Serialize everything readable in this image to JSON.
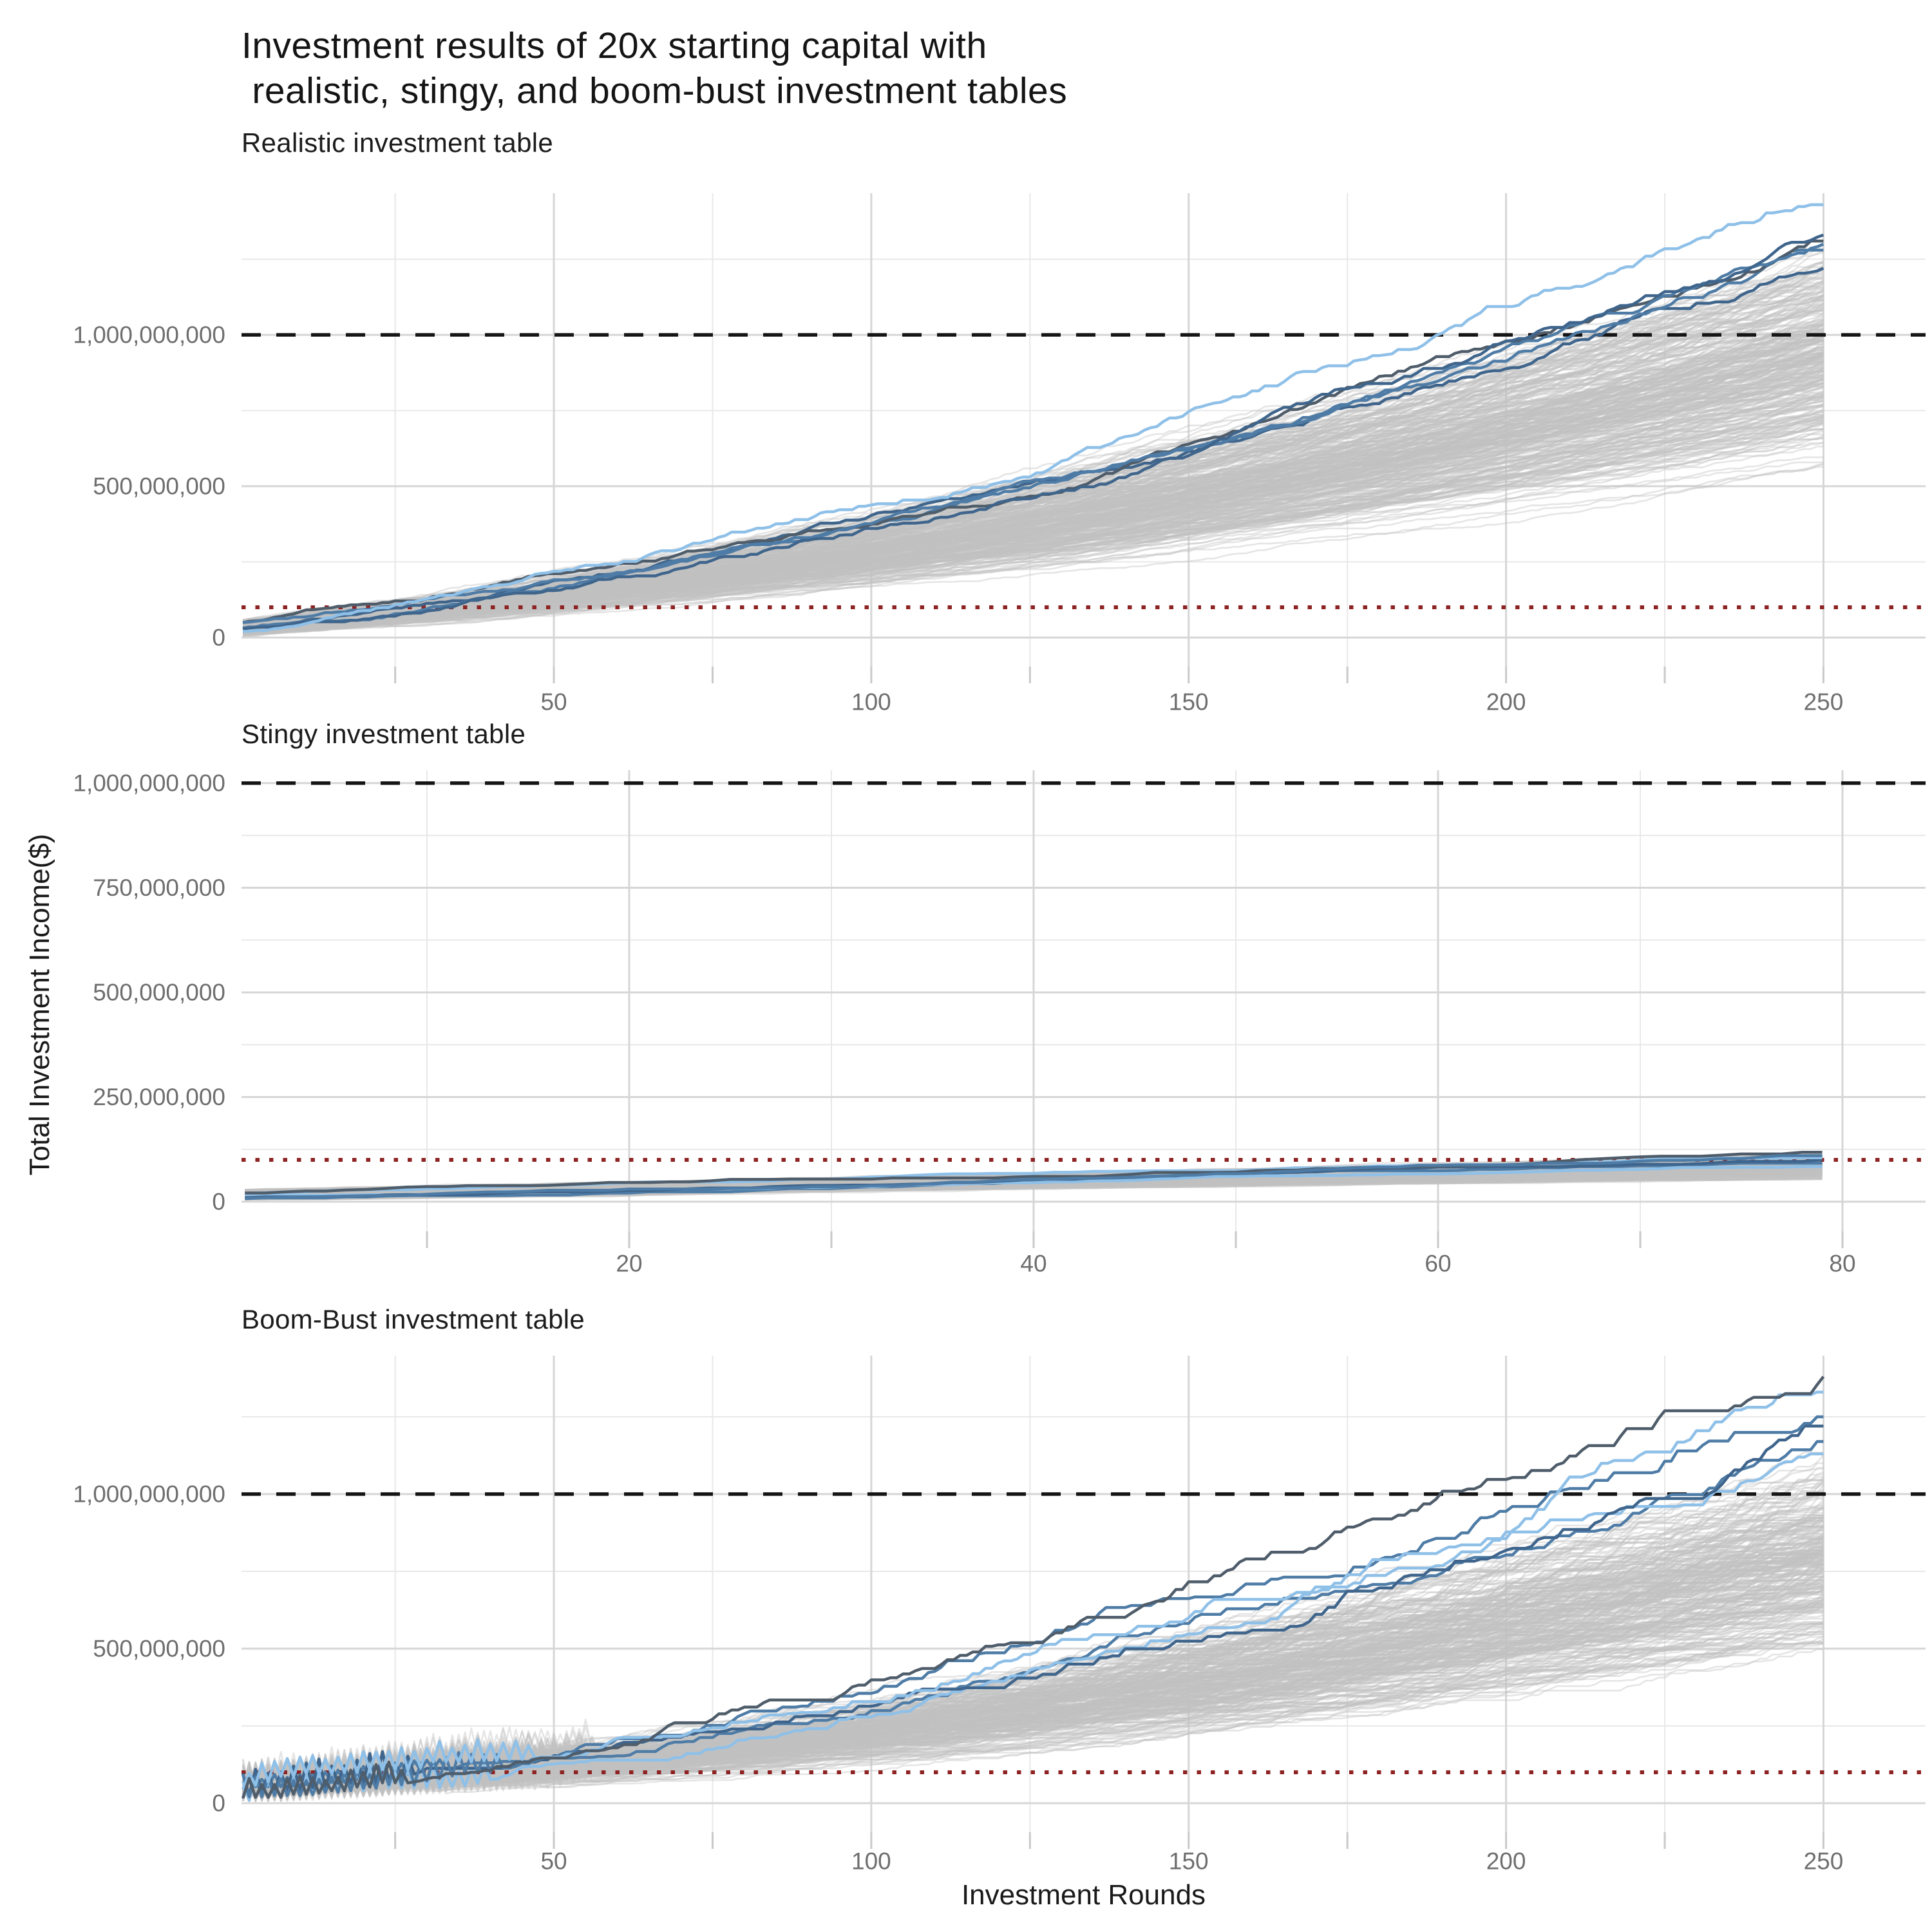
{
  "page": {
    "title_line1": "Investment results of 20x starting capital with",
    "title_line2": " realistic, stingy, and boom-bust investment tables"
  },
  "axes": {
    "x_label": "Investment Rounds",
    "y_label": "Total Investment Income($)"
  },
  "colors": {
    "background": "#ffffff",
    "gray_line": "#c0c0c0",
    "grid_major": "#d6d6d6",
    "grid_minor": "#e8e8e8",
    "tick_mark": "#c9c9c9",
    "tick_label": "#6e6e6e",
    "title_text": "#141414",
    "ref_dashed": "#151515",
    "ref_dotted": "#8e2323",
    "highlight_light_blue": "#8fc0e8",
    "highlight_steel_blue": "#4e7ca6",
    "highlight_dark_steel": "#3f658c",
    "highlight_slate": "#4f5d6b"
  },
  "chart_data": [
    {
      "type": "line",
      "title": "Realistic investment table",
      "x_axis": {
        "data_max": 250,
        "ticks_major": [
          50,
          100,
          150,
          200,
          250
        ],
        "tick_labels": [
          "50",
          "100",
          "150",
          "200",
          "250"
        ],
        "ticks_minor": [
          25,
          75,
          125,
          175,
          225
        ]
      },
      "y_axis": {
        "ticks": [
          0,
          500000000,
          1000000000
        ],
        "tick_labels": [
          "0",
          "500,000,000",
          "1,000,000,000"
        ],
        "minor": [
          250000000,
          750000000,
          1250000000
        ],
        "ylim": [
          -96000000,
          1460000000
        ]
      },
      "ref_lines": [
        {
          "value": 1000000000,
          "style": "dashed",
          "color_key": "ref_dashed"
        },
        {
          "value": 100000000,
          "style": "dotted",
          "color_key": "ref_dotted"
        }
      ],
      "ensemble": {
        "n": 320,
        "seed": 101,
        "rounds": 250,
        "start_range": [
          5000000,
          55000000
        ],
        "final_range": [
          550000000,
          1320000000
        ],
        "plateau_prob": 0.3,
        "growth_weight": [
          0.55,
          1.1
        ]
      },
      "highlights": [
        {
          "color_key": "highlight_dark_steel",
          "final": 1220000000
        },
        {
          "color_key": "highlight_steel_blue",
          "final": 1280000000
        },
        {
          "color_key": "highlight_slate",
          "final": 1310000000
        },
        {
          "color_key": "highlight_steel_blue",
          "final": 1300000000
        },
        {
          "color_key": "highlight_dark_steel",
          "final": 1330000000
        },
        {
          "color_key": "highlight_light_blue",
          "final": 1430000000
        }
      ]
    },
    {
      "type": "line",
      "title": "Stingy investment table",
      "x_axis": {
        "data_max": 79,
        "ticks_major": [
          20,
          40,
          60,
          80
        ],
        "tick_labels": [
          "20",
          "40",
          "60",
          "80"
        ],
        "ticks_minor": [
          10,
          30,
          50,
          70
        ]
      },
      "y_axis": {
        "ticks": [
          0,
          250000000,
          500000000,
          750000000,
          1000000000
        ],
        "tick_labels": [
          "0",
          "250,000,000",
          "500,000,000",
          "750,000,000",
          "1,000,000,000"
        ],
        "minor": [
          125000000,
          375000000,
          625000000,
          875000000
        ],
        "ylim": [
          -71000000,
          1031000000
        ]
      },
      "ref_lines": [
        {
          "value": 1000000000,
          "style": "dashed",
          "color_key": "ref_dashed"
        },
        {
          "value": 100000000,
          "style": "dotted",
          "color_key": "ref_dotted"
        }
      ],
      "ensemble": {
        "n": 300,
        "seed": 202,
        "rounds": 79,
        "start_range": [
          4000000,
          28000000
        ],
        "final_range": [
          52000000,
          116000000
        ],
        "plateau_prob": 0.45,
        "growth_weight": [
          0.9,
          0.25
        ]
      },
      "highlights": [
        {
          "color_key": "highlight_steel_blue",
          "final": 92000000
        },
        {
          "color_key": "highlight_light_blue",
          "final": 84000000
        },
        {
          "color_key": "highlight_dark_steel",
          "final": 100000000
        },
        {
          "color_key": "highlight_light_blue",
          "final": 105000000
        },
        {
          "color_key": "highlight_slate",
          "final": 118000000
        },
        {
          "color_key": "highlight_steel_blue",
          "final": 110000000
        }
      ]
    },
    {
      "type": "line",
      "title": "Boom-Bust investment table",
      "x_axis": {
        "data_max": 250,
        "ticks_major": [
          50,
          100,
          150,
          200,
          250
        ],
        "tick_labels": [
          "50",
          "100",
          "150",
          "200",
          "250"
        ],
        "ticks_minor": [
          25,
          75,
          125,
          175,
          225
        ]
      },
      "y_axis": {
        "ticks": [
          0,
          500000000,
          1000000000
        ],
        "tick_labels": [
          "0",
          "500,000,000",
          "1,000,000,000"
        ],
        "minor": [
          250000000,
          750000000,
          1250000000
        ],
        "ylim": [
          -94000000,
          1448000000
        ]
      },
      "ref_lines": [
        {
          "value": 1000000000,
          "style": "dashed",
          "color_key": "ref_dashed"
        },
        {
          "value": 100000000,
          "style": "dotted",
          "color_key": "ref_dotted"
        }
      ],
      "ensemble": {
        "n": 280,
        "seed": 303,
        "rounds": 250,
        "start_range": [
          5000000,
          50000000
        ],
        "final_range": [
          450000000,
          1150000000
        ],
        "plateau_prob": 0.6,
        "growth_weight": [
          0.5,
          1.3
        ],
        "sawtooth": {
          "cut_range": [
            26,
            58
          ],
          "amp_range": [
            30000000,
            80000000
          ]
        }
      },
      "highlights": [
        {
          "color_key": "highlight_steel_blue",
          "final": 1170000000
        },
        {
          "color_key": "highlight_light_blue",
          "final": 1130000000
        },
        {
          "color_key": "highlight_dark_steel",
          "final": 1220000000
        },
        {
          "color_key": "highlight_steel_blue",
          "final": 1250000000
        },
        {
          "color_key": "highlight_light_blue",
          "final": 1330000000
        },
        {
          "color_key": "highlight_slate",
          "final": 1380000000
        }
      ]
    }
  ]
}
